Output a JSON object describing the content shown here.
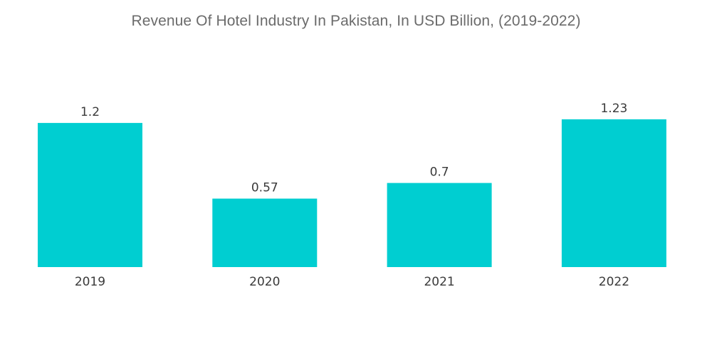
{
  "chart_data": {
    "type": "bar",
    "title": "Revenue Of Hotel Industry In Pakistan, In USD Billion, (2019-2022)",
    "categories": [
      "2019",
      "2020",
      "2021",
      "2022"
    ],
    "values": [
      1.2,
      0.57,
      0.7,
      1.23
    ],
    "value_labels": [
      "1.2",
      "0.57",
      "0.7",
      "1.23"
    ],
    "xlabel": "",
    "ylabel": "",
    "ylim": [
      0,
      1.23
    ],
    "grid": false,
    "legend": "none",
    "bar_color": "#00CED1"
  }
}
